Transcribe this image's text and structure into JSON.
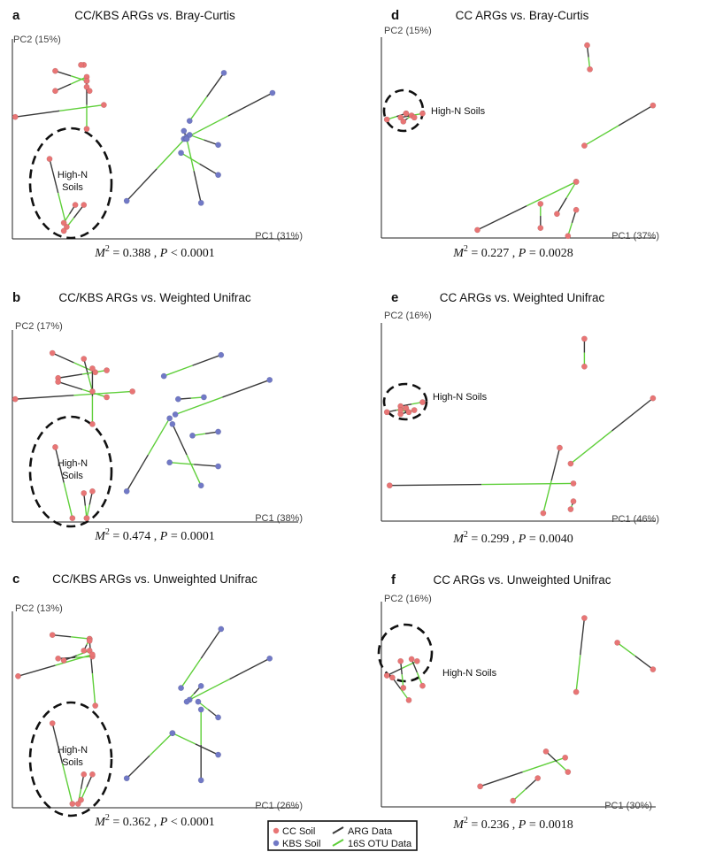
{
  "colors": {
    "cc_soil": "#e87575",
    "kbs_soil": "#7179c6",
    "arg_line": "#3a3a3a",
    "otu_line": "#5fcf3a",
    "axis": "#222222",
    "circle": "#111111"
  },
  "legend": {
    "items": [
      {
        "label": "CC Soil",
        "kind": "point",
        "color_key": "cc_soil"
      },
      {
        "label": "KBS Soil",
        "kind": "point",
        "color_key": "kbs_soil"
      },
      {
        "label": "ARG Data",
        "kind": "line",
        "color_key": "arg_line"
      },
      {
        "label": "16S OTU Data",
        "kind": "line",
        "color_key": "otu_line"
      }
    ]
  },
  "chart_data": [
    {
      "type": "scatter",
      "letter": "a",
      "title": "CC/KBS ARGs vs. Bray-Curtis",
      "xlabel": "PC1 (31%)",
      "ylabel": "PC2 (15%)",
      "stat": {
        "m_label": "M",
        "m_exp": "2",
        "m_value": " = 0.388 , ",
        "p_label": "P",
        "p_value": " < 0.0001"
      },
      "circle_label": [
        "High-N",
        "Soils"
      ],
      "xlim": [
        0,
        100
      ],
      "ylim": [
        0,
        100
      ],
      "pairs": [
        {
          "g": "cc",
          "a": [
            15,
            84
          ],
          "b": [
            26,
            79
          ]
        },
        {
          "g": "cc",
          "a": [
            25,
            87
          ],
          "b": [
            24,
            87
          ]
        },
        {
          "g": "cc",
          "a": [
            27,
            74
          ],
          "b": [
            26,
            76
          ]
        },
        {
          "g": "cc",
          "a": [
            15,
            74
          ],
          "b": [
            26,
            81
          ]
        },
        {
          "g": "cc",
          "a": [
            1,
            61
          ],
          "b": [
            32,
            67
          ]
        },
        {
          "g": "cc",
          "a": [
            26,
            79
          ],
          "b": [
            26,
            55
          ]
        },
        {
          "g": "cc",
          "a": [
            13,
            40
          ],
          "b": [
            19,
            6
          ]
        },
        {
          "g": "cc",
          "a": [
            22,
            17
          ],
          "b": [
            18,
            8
          ]
        },
        {
          "g": "cc",
          "a": [
            25,
            17
          ],
          "b": [
            18,
            4
          ]
        },
        {
          "g": "kbs",
          "a": [
            74,
            83
          ],
          "b": [
            62,
            59
          ]
        },
        {
          "g": "kbs",
          "a": [
            91,
            73
          ],
          "b": [
            60,
            50
          ]
        },
        {
          "g": "kbs",
          "a": [
            40,
            19
          ],
          "b": [
            61,
            51
          ]
        },
        {
          "g": "kbs",
          "a": [
            72,
            47
          ],
          "b": [
            62,
            52
          ]
        },
        {
          "g": "kbs",
          "a": [
            72,
            32
          ],
          "b": [
            59,
            43
          ]
        },
        {
          "g": "kbs",
          "a": [
            66,
            18
          ],
          "b": [
            61,
            50
          ]
        },
        {
          "g": "kbs",
          "a": [
            60,
            54
          ],
          "b": [
            61,
            50
          ]
        }
      ]
    },
    {
      "type": "scatter",
      "letter": "b",
      "title": "CC/KBS ARGs vs. Weighted Unifrac",
      "xlabel": "PC1 (38%)",
      "ylabel": "PC2 (17%)",
      "stat": {
        "m_label": "M",
        "m_exp": "2",
        "m_value": " = 0.474 , ",
        "p_label": "P",
        "p_value": " = 0.0001"
      },
      "circle_label": [
        "High-N",
        "Soils"
      ],
      "xlim": [
        0,
        100
      ],
      "ylim": [
        0,
        100
      ],
      "pairs": [
        {
          "g": "cc",
          "a": [
            14,
            88
          ],
          "b": [
            29,
            78
          ]
        },
        {
          "g": "cc",
          "a": [
            25,
            85
          ],
          "b": [
            28,
            68
          ]
        },
        {
          "g": "cc",
          "a": [
            16,
            75
          ],
          "b": [
            33,
            79
          ]
        },
        {
          "g": "cc",
          "a": [
            16,
            73
          ],
          "b": [
            33,
            65
          ]
        },
        {
          "g": "cc",
          "a": [
            1,
            64
          ],
          "b": [
            42,
            68
          ]
        },
        {
          "g": "cc",
          "a": [
            28,
            80
          ],
          "b": [
            28,
            51
          ]
        },
        {
          "g": "cc",
          "a": [
            15,
            39
          ],
          "b": [
            21,
            2
          ]
        },
        {
          "g": "cc",
          "a": [
            25,
            15
          ],
          "b": [
            26,
            2
          ]
        },
        {
          "g": "cc",
          "a": [
            28,
            16
          ],
          "b": [
            26,
            2
          ]
        },
        {
          "g": "kbs",
          "a": [
            73,
            87
          ],
          "b": [
            53,
            76
          ]
        },
        {
          "g": "kbs",
          "a": [
            90,
            74
          ],
          "b": [
            57,
            56
          ]
        },
        {
          "g": "kbs",
          "a": [
            40,
            16
          ],
          "b": [
            55,
            54
          ]
        },
        {
          "g": "kbs",
          "a": [
            58,
            64
          ],
          "b": [
            67,
            65
          ]
        },
        {
          "g": "kbs",
          "a": [
            72,
            47
          ],
          "b": [
            63,
            45
          ]
        },
        {
          "g": "kbs",
          "a": [
            72,
            29
          ],
          "b": [
            55,
            31
          ]
        },
        {
          "g": "kbs",
          "a": [
            56,
            51
          ],
          "b": [
            66,
            19
          ]
        }
      ]
    },
    {
      "type": "scatter",
      "letter": "c",
      "title": "CC/KBS ARGs vs. Unweighted Unifrac",
      "xlabel": "PC1 (26%)",
      "ylabel": "PC2 (13%)",
      "stat": {
        "m_label": "M",
        "m_exp": "2",
        "m_value": " = 0.362 , ",
        "p_label": "P",
        "p_value": " < 0.0001"
      },
      "circle_label": [
        "High-N",
        "Soils"
      ],
      "xlim": [
        0,
        100
      ],
      "ylim": [
        0,
        100
      ],
      "pairs": [
        {
          "g": "cc",
          "a": [
            14,
            88
          ],
          "b": [
            27,
            86
          ]
        },
        {
          "g": "cc",
          "a": [
            25,
            80
          ],
          "b": [
            27,
            86
          ]
        },
        {
          "g": "cc",
          "a": [
            16,
            76
          ],
          "b": [
            28,
            77
          ]
        },
        {
          "g": "cc",
          "a": [
            18,
            75
          ],
          "b": [
            27,
            80
          ]
        },
        {
          "g": "cc",
          "a": [
            2,
            67
          ],
          "b": [
            28,
            78
          ]
        },
        {
          "g": "cc",
          "a": [
            27,
            85
          ],
          "b": [
            29,
            52
          ]
        },
        {
          "g": "cc",
          "a": [
            14,
            43
          ],
          "b": [
            21,
            2
          ]
        },
        {
          "g": "cc",
          "a": [
            25,
            17
          ],
          "b": [
            23,
            2
          ]
        },
        {
          "g": "cc",
          "a": [
            28,
            17
          ],
          "b": [
            24,
            4
          ]
        },
        {
          "g": "kbs",
          "a": [
            73,
            91
          ],
          "b": [
            59,
            61
          ]
        },
        {
          "g": "kbs",
          "a": [
            90,
            76
          ],
          "b": [
            62,
            55
          ]
        },
        {
          "g": "kbs",
          "a": [
            40,
            15
          ],
          "b": [
            56,
            38
          ]
        },
        {
          "g": "kbs",
          "a": [
            66,
            62
          ],
          "b": [
            61,
            54
          ]
        },
        {
          "g": "kbs",
          "a": [
            72,
            46
          ],
          "b": [
            65,
            54
          ]
        },
        {
          "g": "kbs",
          "a": [
            72,
            27
          ],
          "b": [
            56,
            38
          ]
        },
        {
          "g": "kbs",
          "a": [
            66,
            14
          ],
          "b": [
            66,
            50
          ]
        }
      ]
    },
    {
      "type": "scatter",
      "letter": "d",
      "title": "CC ARGs vs. Bray-Curtis",
      "xlabel": "PC1 (37%)",
      "ylabel": "PC2 (15%)",
      "stat": {
        "m_label": "M",
        "m_exp": "2",
        "m_value": " = 0.227 , ",
        "p_label": "P",
        "p_value": " = 0.0028"
      },
      "circle_label": [
        "High-N Soils"
      ],
      "xlim": [
        0,
        100
      ],
      "ylim": [
        0,
        100
      ],
      "pairs": [
        {
          "g": "cc",
          "a": [
            75,
            96
          ],
          "b": [
            76,
            84
          ]
        },
        {
          "g": "cc",
          "a": [
            99,
            66
          ],
          "b": [
            74,
            46
          ]
        },
        {
          "g": "cc",
          "a": [
            35,
            4
          ],
          "b": [
            71,
            28
          ]
        },
        {
          "g": "cc",
          "a": [
            58,
            5
          ],
          "b": [
            58,
            17
          ]
        },
        {
          "g": "cc",
          "a": [
            64,
            12
          ],
          "b": [
            71,
            28
          ]
        },
        {
          "g": "cc",
          "a": [
            7,
            60
          ],
          "b": [
            15,
            62
          ]
        },
        {
          "g": "cc",
          "a": [
            9,
            62
          ],
          "b": [
            2,
            59
          ]
        },
        {
          "g": "cc",
          "a": [
            8,
            58
          ],
          "b": [
            11,
            61
          ]
        },
        {
          "g": "cc",
          "a": [
            12,
            60
          ],
          "b": [
            9,
            62
          ]
        },
        {
          "g": "cc",
          "a": [
            71,
            14
          ],
          "b": [
            68,
            1
          ]
        }
      ]
    },
    {
      "type": "scatter",
      "letter": "e",
      "title": "CC ARGs vs. Weighted Unifrac",
      "xlabel": "PC1 (46%)",
      "ylabel": "PC2 (16%)",
      "stat": {
        "m_label": "M",
        "m_exp": "2",
        "m_value": " = 0.299 , ",
        "p_label": "P",
        "p_value": " = 0.0040"
      },
      "circle_label": [
        "High-N Soils"
      ],
      "xlim": [
        0,
        100
      ],
      "ylim": [
        0,
        100
      ],
      "pairs": [
        {
          "g": "cc",
          "a": [
            74,
            92
          ],
          "b": [
            74,
            78
          ]
        },
        {
          "g": "cc",
          "a": [
            99,
            62
          ],
          "b": [
            69,
            29
          ]
        },
        {
          "g": "cc",
          "a": [
            65,
            37
          ],
          "b": [
            59,
            4
          ]
        },
        {
          "g": "cc",
          "a": [
            3,
            18
          ],
          "b": [
            70,
            19
          ]
        },
        {
          "g": "cc",
          "a": [
            70,
            10
          ],
          "b": [
            69,
            6
          ]
        },
        {
          "g": "cc",
          "a": [
            7,
            58
          ],
          "b": [
            15,
            60
          ]
        },
        {
          "g": "cc",
          "a": [
            2,
            55
          ],
          "b": [
            9,
            57
          ]
        },
        {
          "g": "cc",
          "a": [
            7,
            54
          ],
          "b": [
            12,
            56
          ]
        },
        {
          "g": "cc",
          "a": [
            10,
            55
          ],
          "b": [
            7,
            56
          ]
        }
      ]
    },
    {
      "type": "scatter",
      "letter": "f",
      "title": "CC ARGs vs. Unweighted Unifrac",
      "xlabel": "PC1 (30%)",
      "ylabel": "PC2 (16%)",
      "stat": {
        "m_label": "M",
        "m_exp": "2",
        "m_value": " = 0.236 , ",
        "p_label": "P",
        "p_value": " = 0.0018"
      },
      "circle_label": [
        "High-N Soils"
      ],
      "xlim": [
        0,
        100
      ],
      "ylim": [
        0,
        100
      ],
      "pairs": [
        {
          "g": "cc",
          "a": [
            74,
            92
          ],
          "b": [
            71,
            56
          ]
        },
        {
          "g": "cc",
          "a": [
            99,
            67
          ],
          "b": [
            86,
            80
          ]
        },
        {
          "g": "cc",
          "a": [
            36,
            10
          ],
          "b": [
            67,
            24
          ]
        },
        {
          "g": "cc",
          "a": [
            60,
            27
          ],
          "b": [
            68,
            17
          ]
        },
        {
          "g": "cc",
          "a": [
            57,
            14
          ],
          "b": [
            48,
            3
          ]
        },
        {
          "g": "cc",
          "a": [
            7,
            71
          ],
          "b": [
            8,
            58
          ]
        },
        {
          "g": "cc",
          "a": [
            2,
            64
          ],
          "b": [
            13,
            71
          ]
        },
        {
          "g": "cc",
          "a": [
            11,
            72
          ],
          "b": [
            15,
            59
          ]
        },
        {
          "g": "cc",
          "a": [
            4,
            63
          ],
          "b": [
            10,
            52
          ]
        }
      ]
    }
  ]
}
